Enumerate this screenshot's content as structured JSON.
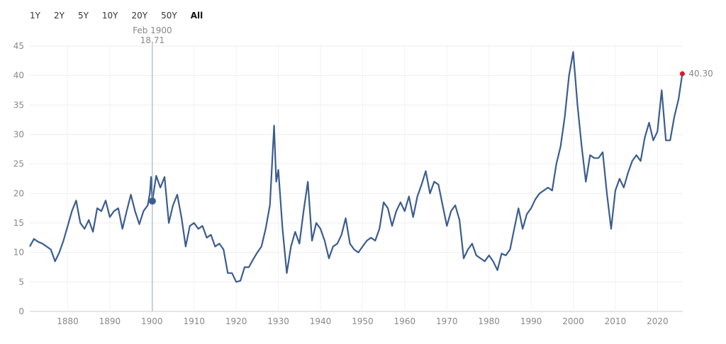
{
  "range_buttons": [
    "1Y",
    "2Y",
    "5Y",
    "10Y",
    "20Y",
    "50Y",
    "All"
  ],
  "chart_data": {
    "type": "line",
    "xlim": [
      1871,
      2026
    ],
    "ylim": [
      0,
      45
    ],
    "xticks": [
      1880,
      1890,
      1900,
      1910,
      1920,
      1930,
      1940,
      1950,
      1960,
      1970,
      1980,
      1990,
      2000,
      2010,
      2020
    ],
    "yticks": [
      0,
      5,
      10,
      15,
      20,
      25,
      30,
      35,
      40,
      45
    ],
    "grid": true,
    "series": [
      {
        "color": "#3b5d8f",
        "x": [
          1871,
          1872,
          1873,
          1874,
          1875,
          1876,
          1877,
          1878,
          1879,
          1880,
          1881,
          1882,
          1883,
          1884,
          1885,
          1886,
          1887,
          1888,
          1889,
          1890,
          1891,
          1892,
          1893,
          1894,
          1895,
          1896,
          1897,
          1898,
          1899,
          1899.5,
          1899.8,
          1900.1,
          1901,
          1902,
          1903,
          1904,
          1905,
          1906,
          1907,
          1908,
          1909,
          1910,
          1911,
          1912,
          1913,
          1914,
          1915,
          1916,
          1917,
          1918,
          1919,
          1920,
          1921,
          1922,
          1923,
          1924,
          1925,
          1926,
          1927,
          1928,
          1929,
          1929.5,
          1930,
          1931,
          1932,
          1933,
          1934,
          1935,
          1936,
          1937,
          1938,
          1939,
          1940,
          1941,
          1942,
          1943,
          1944,
          1945,
          1946,
          1947,
          1948,
          1949,
          1950,
          1951,
          1952,
          1953,
          1954,
          1955,
          1956,
          1957,
          1958,
          1959,
          1960,
          1961,
          1962,
          1963,
          1964,
          1965,
          1966,
          1967,
          1968,
          1969,
          1970,
          1971,
          1972,
          1973,
          1974,
          1975,
          1976,
          1977,
          1978,
          1979,
          1980,
          1981,
          1982,
          1983,
          1984,
          1985,
          1986,
          1987,
          1988,
          1989,
          1990,
          1991,
          1992,
          1993,
          1994,
          1995,
          1996,
          1997,
          1998,
          1999,
          2000,
          2001,
          2002,
          2003,
          2004,
          2005,
          2006,
          2007,
          2008,
          2009,
          2010,
          2011,
          2012,
          2013,
          2014,
          2015,
          2016,
          2017,
          2018,
          2019,
          2020,
          2021,
          2022,
          2023,
          2024,
          2025,
          2025.9
        ],
        "values": [
          11,
          12.3,
          11.8,
          11.5,
          11,
          10.5,
          8.5,
          10,
          12,
          14.5,
          17,
          18.8,
          15,
          14,
          15.5,
          13.5,
          17.5,
          17,
          18.8,
          16,
          17,
          17.5,
          14,
          17,
          19.8,
          17,
          14.8,
          17,
          18,
          20,
          22.8,
          18.71,
          23,
          21,
          22.8,
          15,
          18,
          19.8,
          16,
          11,
          14.5,
          15,
          14,
          14.5,
          12.5,
          13,
          11,
          11.5,
          10.5,
          6.5,
          6.5,
          5,
          5.2,
          7.5,
          7.5,
          8.8,
          10,
          11,
          14,
          18,
          31.5,
          22,
          24,
          14,
          6.5,
          11,
          13.5,
          11.5,
          17,
          22,
          12,
          15,
          14,
          12,
          9,
          11,
          11.5,
          13,
          15.8,
          11.5,
          10.5,
          10,
          11,
          12,
          12.5,
          12,
          14,
          18.5,
          17.5,
          14.5,
          17,
          18.5,
          17,
          19.5,
          16,
          19.5,
          21.5,
          23.8,
          20,
          22,
          21.5,
          18,
          14.5,
          17,
          18,
          15.5,
          9,
          10.5,
          11.5,
          9.5,
          9,
          8.5,
          9.5,
          8.5,
          7,
          9.8,
          9.5,
          10.5,
          14,
          17.5,
          14,
          16.5,
          17.5,
          19,
          20,
          20.5,
          21,
          20.5,
          25,
          28,
          33,
          40,
          44,
          35,
          28,
          22,
          26.5,
          26,
          26,
          27,
          20,
          14,
          20.5,
          22.5,
          21,
          23.5,
          25.5,
          26.5,
          25.5,
          29.5,
          32,
          29,
          30.5,
          37.5,
          29,
          29,
          33,
          36,
          40.3
        ]
      }
    ],
    "highlight": {
      "date": "Feb 1900",
      "x": 1900.1,
      "value": 18.71
    },
    "last": {
      "x": 2025.9,
      "value": 40.3,
      "label": "40.30"
    }
  }
}
